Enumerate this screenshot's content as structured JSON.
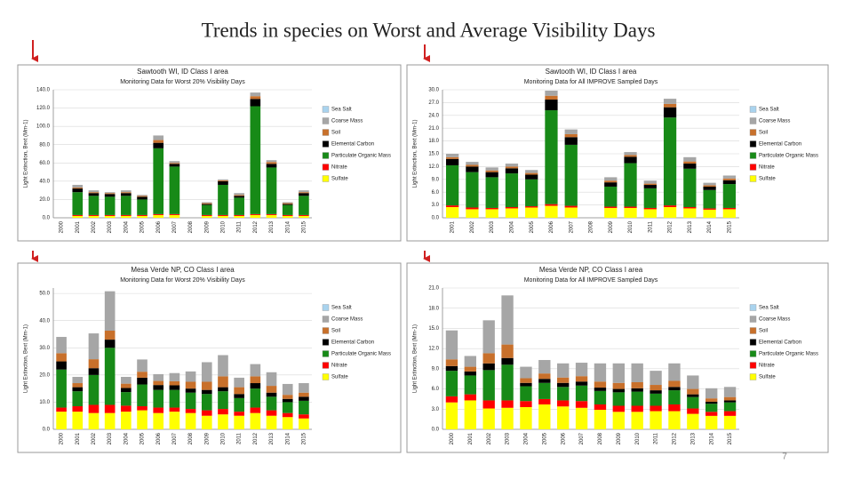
{
  "title": "Trends in species on Worst and Average Visibility Days",
  "page_number": "7",
  "chart_data": [
    {
      "type": "stacked_bar",
      "title": "Sawtooth WI, ID Class I area",
      "subtitle": "Monitoring Data for Worst 20% Visibility Days",
      "y_label": "Light Extinction, Bext (Mm-1)",
      "categories": [
        "2000",
        "2001",
        "2002",
        "2003",
        "2004",
        "2005",
        "2006",
        "2007",
        "2008",
        "2009",
        "2010",
        "2011",
        "2012",
        "2013",
        "2014",
        "2015"
      ],
      "ylim": [
        0,
        140
      ],
      "yticks": [
        {
          "value": 0,
          "label": "0.0"
        },
        {
          "value": 20,
          "label": "20.0"
        },
        {
          "value": 40,
          "label": "40.0"
        },
        {
          "value": 60,
          "label": "60.0"
        },
        {
          "value": 80,
          "label": "80.0"
        },
        {
          "value": 100,
          "label": "100.0"
        },
        {
          "value": 120,
          "label": "120.0"
        },
        {
          "value": 140,
          "label": "140.0"
        }
      ],
      "grid": true,
      "series": [
        {
          "name": "Sea Salt",
          "color": "#a9d3ee",
          "values": [
            null,
            0,
            0,
            0,
            0,
            0,
            0,
            0,
            null,
            0,
            0,
            0,
            0,
            0,
            0,
            0
          ]
        },
        {
          "name": "Coarse Mass",
          "color": "#a6a6a6",
          "values": [
            null,
            3,
            2,
            1,
            2,
            1,
            5,
            2,
            null,
            1,
            1,
            2,
            4,
            2,
            1,
            2
          ]
        },
        {
          "name": "Soil",
          "color": "#c8702b",
          "values": [
            null,
            1,
            1,
            1,
            1,
            1,
            3,
            1,
            null,
            1,
            1,
            1,
            3,
            2,
            1,
            1
          ]
        },
        {
          "name": "Elemental Carbon",
          "color": "#000000",
          "values": [
            null,
            4,
            3,
            3,
            3,
            3,
            6,
            3,
            null,
            1,
            4,
            2,
            8,
            4,
            1,
            3
          ]
        },
        {
          "name": "Particulate Organic Mass",
          "color": "#178a17",
          "values": [
            null,
            25,
            21,
            20,
            21,
            17,
            72,
            52,
            null,
            11,
            33,
            19,
            118,
            51,
            11,
            21
          ]
        },
        {
          "name": "Nitrate",
          "color": "#ff0000",
          "values": [
            null,
            1,
            1,
            1,
            1,
            1,
            1,
            1,
            null,
            1,
            1,
            1,
            1,
            1,
            1,
            1
          ]
        },
        {
          "name": "Sulfate",
          "color": "#ffff00",
          "values": [
            null,
            2,
            2,
            2,
            2,
            2,
            3,
            3,
            null,
            2,
            2,
            2,
            3,
            3,
            2,
            2
          ]
        }
      ]
    },
    {
      "type": "stacked_bar",
      "title": "Sawtooth WI, ID Class I area",
      "subtitle": "Monitoring Data for All IMPROVE Sampled Days",
      "y_label": "Light Extinction, Bext (Mm-1)",
      "categories": [
        "2001",
        "2002",
        "2003",
        "2004",
        "2005",
        "2006",
        "2007",
        "2008",
        "2009",
        "2010",
        "2011",
        "2012",
        "2013",
        "2014",
        "2015"
      ],
      "ylim": [
        0,
        30
      ],
      "yticks": [
        {
          "value": 0,
          "label": "0.0"
        },
        {
          "value": 3,
          "label": "3.0"
        },
        {
          "value": 6,
          "label": "6.0"
        },
        {
          "value": 9,
          "label": "9.0"
        },
        {
          "value": 12,
          "label": "12.0"
        },
        {
          "value": 15,
          "label": "15.0"
        },
        {
          "value": 18,
          "label": "18.0"
        },
        {
          "value": 21,
          "label": "21.0"
        },
        {
          "value": 24,
          "label": "24.0"
        },
        {
          "value": 27,
          "label": "27.0"
        },
        {
          "value": 30,
          "label": "30.0"
        }
      ],
      "grid": true,
      "series": [
        {
          "name": "Sea Salt",
          "color": "#a9d3ee",
          "values": [
            0,
            0,
            0,
            0,
            0,
            0,
            0,
            null,
            0,
            0,
            0,
            0,
            0,
            0,
            0
          ]
        },
        {
          "name": "Coarse Mass",
          "color": "#a6a6a6",
          "values": [
            0.8,
            0.7,
            0.7,
            0.7,
            0.7,
            1.2,
            1.1,
            null,
            0.8,
            0.7,
            0.7,
            1.2,
            1.0,
            0.6,
            0.7
          ]
        },
        {
          "name": "Soil",
          "color": "#c8702b",
          "values": [
            0.4,
            0.4,
            0.4,
            0.4,
            0.4,
            0.9,
            0.7,
            null,
            0.4,
            0.4,
            0.3,
            0.8,
            0.5,
            0.3,
            0.4
          ]
        },
        {
          "name": "Elemental Carbon",
          "color": "#000000",
          "values": [
            1.5,
            1.3,
            1.2,
            1.2,
            1.1,
            2.5,
            1.8,
            null,
            1.0,
            1.5,
            0.8,
            2.4,
            1.2,
            0.8,
            0.9
          ]
        },
        {
          "name": "Particulate Organic Mass",
          "color": "#178a17",
          "values": [
            9.4,
            8.3,
            7.2,
            7.9,
            6.3,
            22.0,
            14.3,
            null,
            4.7,
            10.2,
            4.6,
            20.6,
            9.0,
            4.3,
            5.6
          ]
        },
        {
          "name": "Nitrate",
          "color": "#ff0000",
          "values": [
            0.4,
            0.4,
            0.3,
            0.3,
            0.3,
            0.4,
            0.4,
            null,
            0.3,
            0.3,
            0.3,
            0.4,
            0.3,
            0.3,
            0.3
          ]
        },
        {
          "name": "Sulfate",
          "color": "#ffff00",
          "values": [
            2.5,
            2.0,
            2.0,
            2.2,
            2.4,
            2.8,
            2.4,
            null,
            2.3,
            2.3,
            2.0,
            2.5,
            2.2,
            1.9,
            2.0
          ]
        }
      ]
    },
    {
      "type": "stacked_bar",
      "title": "Mesa Verde NP, CO Class I area",
      "subtitle": "Monitoring Data for Worst 20% Visibility Days",
      "y_label": "Light Extinction, Bext (Mm-1)",
      "categories": [
        "2000",
        "2001",
        "2002",
        "2003",
        "2004",
        "2005",
        "2006",
        "2007",
        "2008",
        "2009",
        "2010",
        "2011",
        "2012",
        "2013",
        "2014",
        "2015"
      ],
      "ylim": [
        0,
        52
      ],
      "yticks": [
        {
          "value": 0,
          "label": "0.0"
        },
        {
          "value": 10,
          "label": "10.0"
        },
        {
          "value": 20,
          "label": "20.0"
        },
        {
          "value": 30,
          "label": "30.0"
        },
        {
          "value": 40,
          "label": "40.0"
        },
        {
          "value": 50,
          "label": "50.0"
        }
      ],
      "grid": true,
      "series": [
        {
          "name": "Sea Salt",
          "color": "#a9d3ee",
          "values": [
            0,
            0,
            0,
            0,
            0,
            0,
            0,
            0,
            0,
            0,
            0,
            0,
            0,
            0,
            0,
            0
          ]
        },
        {
          "name": "Coarse Mass",
          "color": "#a6a6a6",
          "values": [
            6,
            2.3,
            9.5,
            14.5,
            2.5,
            4.5,
            2.5,
            3.0,
            3.8,
            7.2,
            7.8,
            3.5,
            4.5,
            5.0,
            4.0,
            3.5
          ]
        },
        {
          "name": "Soil",
          "color": "#c8702b",
          "values": [
            3,
            1.5,
            3.3,
            3.3,
            1.6,
            2.2,
            1.5,
            1.5,
            2.5,
            3.0,
            4.0,
            2.5,
            2.5,
            2.5,
            1.5,
            1.5
          ]
        },
        {
          "name": "Elemental Carbon",
          "color": "#000000",
          "values": [
            3,
            1.5,
            2.5,
            3,
            1.5,
            2.5,
            1.8,
            1.7,
            1.5,
            1.5,
            1.5,
            1.5,
            2.0,
            1.5,
            1.2,
            1.5
          ]
        },
        {
          "name": "Particulate Organic Mass",
          "color": "#178a17",
          "values": [
            14,
            5.5,
            11,
            21,
            5.0,
            8.0,
            6.5,
            6.5,
            6.0,
            6.0,
            6.5,
            5.0,
            7.0,
            5.0,
            4.0,
            5.0
          ]
        },
        {
          "name": "Nitrate",
          "color": "#ff0000",
          "values": [
            1.5,
            2.0,
            3.0,
            3.0,
            2.2,
            1.5,
            2.0,
            1.5,
            1.5,
            2.0,
            2.0,
            1.5,
            2.0,
            2.0,
            1.5,
            1.5
          ]
        },
        {
          "name": "Sulfate",
          "color": "#ffff00",
          "values": [
            6.5,
            6.5,
            6.0,
            6.0,
            6.5,
            7.0,
            6.0,
            6.5,
            6.0,
            5.0,
            5.5,
            5.0,
            6.0,
            5.0,
            4.5,
            4.0
          ]
        }
      ]
    },
    {
      "type": "stacked_bar",
      "title": "Mesa Verde NP, CO Class I area",
      "subtitle": "Monitoring Data for All IMPROVE Sampled Days",
      "y_label": "Light Extinction, Bext (Mm-1)",
      "categories": [
        "2000",
        "2001",
        "2002",
        "2003",
        "2004",
        "2005",
        "2006",
        "2007",
        "2008",
        "2009",
        "2010",
        "2011",
        "2012",
        "2013",
        "2014",
        "2015"
      ],
      "ylim": [
        0,
        21
      ],
      "yticks": [
        {
          "value": 0,
          "label": "0.0"
        },
        {
          "value": 3,
          "label": "3.0"
        },
        {
          "value": 6,
          "label": "6.0"
        },
        {
          "value": 9,
          "label": "9.0"
        },
        {
          "value": 12,
          "label": "12.0"
        },
        {
          "value": 15,
          "label": "15.0"
        },
        {
          "value": 18,
          "label": "18.0"
        },
        {
          "value": 21,
          "label": "21.0"
        }
      ],
      "grid": true,
      "series": [
        {
          "name": "Sea Salt",
          "color": "#a9d3ee",
          "values": [
            0,
            0,
            0,
            0,
            0,
            0,
            0,
            0,
            0,
            0,
            0,
            0,
            0,
            0,
            0,
            0
          ]
        },
        {
          "name": "Coarse Mass",
          "color": "#a6a6a6",
          "values": [
            4.3,
            1.6,
            4.9,
            7.3,
            1.7,
            2.0,
            2.1,
            2.0,
            2.7,
            2.9,
            2.8,
            2.1,
            2.6,
            2.0,
            1.5,
            1.5
          ]
        },
        {
          "name": "Soil",
          "color": "#c8702b",
          "values": [
            1.0,
            0.7,
            1.5,
            2.0,
            0.7,
            0.8,
            0.8,
            0.8,
            0.9,
            0.9,
            0.9,
            0.8,
            0.9,
            0.8,
            0.5,
            0.5
          ]
        },
        {
          "name": "Elemental Carbon",
          "color": "#000000",
          "values": [
            0.7,
            0.6,
            1.0,
            1.0,
            0.5,
            0.6,
            0.6,
            0.6,
            0.5,
            0.5,
            0.5,
            0.5,
            0.5,
            0.4,
            0.3,
            0.3
          ]
        },
        {
          "name": "Particulate Organic Mass",
          "color": "#178a17",
          "values": [
            3.8,
            2.8,
            4.5,
            5.3,
            2.2,
            2.4,
            2.0,
            2.3,
            2.0,
            2.0,
            2.1,
            1.8,
            2.1,
            1.7,
            1.2,
            1.3
          ]
        },
        {
          "name": "Nitrate",
          "color": "#ff0000",
          "values": [
            0.9,
            0.9,
            1.2,
            1.1,
            0.9,
            0.8,
            0.9,
            1.0,
            0.8,
            0.9,
            0.9,
            0.8,
            1.0,
            0.8,
            0.6,
            0.7
          ]
        },
        {
          "name": "Sulfate",
          "color": "#ffff00",
          "values": [
            4.0,
            4.3,
            3.1,
            3.2,
            3.3,
            3.7,
            3.4,
            3.2,
            2.9,
            2.6,
            2.6,
            2.7,
            2.7,
            2.3,
            2.0,
            2.0
          ]
        }
      ]
    }
  ]
}
